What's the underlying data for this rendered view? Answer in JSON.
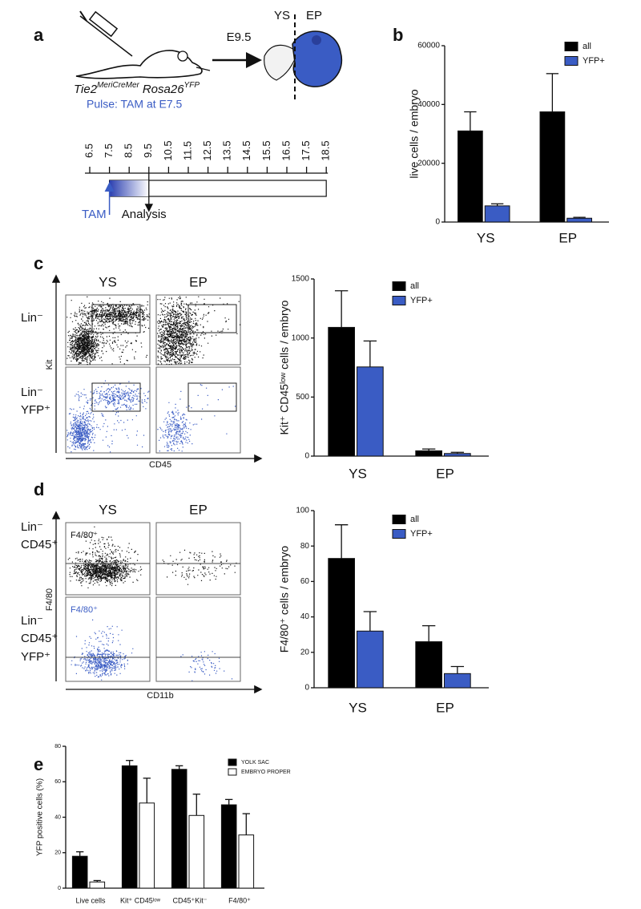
{
  "panel_labels": [
    "a",
    "b",
    "c",
    "d",
    "e"
  ],
  "schematic": {
    "stage": "E9.5",
    "regions": [
      "YS",
      "EP"
    ],
    "genotype": [
      {
        "gene": "Tie2",
        "allele": "MeriCreMer"
      },
      {
        "gene": "Rosa26",
        "allele": "YFP"
      }
    ],
    "pulse": "Pulse: TAM at E7.5",
    "timeline": [
      6.5,
      7.5,
      8.5,
      9.5,
      10.5,
      11.5,
      12.5,
      13.5,
      14.5,
      15.5,
      16.5,
      17.5,
      18.5
    ],
    "tam": "TAM",
    "analysis": "Analysis"
  },
  "flow": [
    {
      "columns": [
        "YS",
        "EP"
      ],
      "rows": [
        [
          "Lin⁻"
        ],
        [
          "Lin⁻",
          "YFP⁺"
        ]
      ],
      "y_axis": "Kit",
      "x_axis": "CD45"
    },
    {
      "columns": [
        "YS",
        "EP"
      ],
      "rows": [
        [
          "Lin⁻",
          "CD45⁺"
        ],
        [
          "Lin⁻",
          "CD45⁺",
          "YFP⁺"
        ]
      ],
      "gates": [
        "F4/80⁺",
        "F4/80⁺"
      ],
      "y_axis": "F4/80",
      "x_axis": "CD11b"
    }
  ],
  "chart_data": [
    {
      "type": "bar",
      "ylabel": "live cells / embryo",
      "categories": [
        "YS",
        "EP"
      ],
      "series": [
        {
          "name": "all",
          "color": "#000000",
          "values": [
            31000,
            37500
          ],
          "errors": [
            6500,
            13000
          ]
        },
        {
          "name": "YFP+",
          "color": "#3a5cc4",
          "values": [
            5500,
            1300
          ],
          "errors": [
            700,
            300
          ]
        }
      ],
      "ylim": [
        0,
        60000
      ],
      "yticks": [
        0,
        20000,
        40000,
        60000
      ]
    },
    {
      "type": "bar",
      "ylabel": "Kit⁺ CD45ˡᵒʷ cells / embryo",
      "categories": [
        "YS",
        "EP"
      ],
      "series": [
        {
          "name": "all",
          "color": "#000000",
          "values": [
            1090,
            45
          ],
          "errors": [
            310,
            15
          ]
        },
        {
          "name": "YFP+",
          "color": "#3a5cc4",
          "values": [
            755,
            22
          ],
          "errors": [
            220,
            10
          ]
        }
      ],
      "ylim": [
        0,
        1500
      ],
      "yticks": [
        0,
        500,
        1000,
        1500
      ]
    },
    {
      "type": "bar",
      "ylabel": "F4/80⁺ cells / embryo",
      "categories": [
        "YS",
        "EP"
      ],
      "series": [
        {
          "name": "all",
          "color": "#000000",
          "values": [
            73,
            26
          ],
          "errors": [
            19,
            9
          ]
        },
        {
          "name": "YFP+",
          "color": "#3a5cc4",
          "values": [
            32,
            8
          ],
          "errors": [
            11,
            4
          ]
        }
      ],
      "ylim": [
        0,
        100
      ],
      "yticks": [
        0,
        20,
        40,
        60,
        80,
        100
      ]
    },
    {
      "type": "bar",
      "ylabel": "YFP positive cells (%)",
      "categories": [
        "Live cells",
        "Kit⁺ CD45ˡᵒʷ",
        "CD45⁺Kit⁻",
        "F4/80⁺"
      ],
      "series": [
        {
          "name": "YOLK SAC",
          "color": "#000000",
          "values": [
            18,
            69,
            67,
            47
          ],
          "errors": [
            2.5,
            3,
            2,
            3
          ]
        },
        {
          "name": "EMBRYO PROPER",
          "color": "#ffffff",
          "values": [
            3.5,
            48,
            41,
            30
          ],
          "errors": [
            0.8,
            14,
            12,
            12
          ]
        }
      ],
      "ylim": [
        0,
        80
      ],
      "yticks": [
        0,
        20,
        40,
        60,
        80
      ]
    }
  ]
}
